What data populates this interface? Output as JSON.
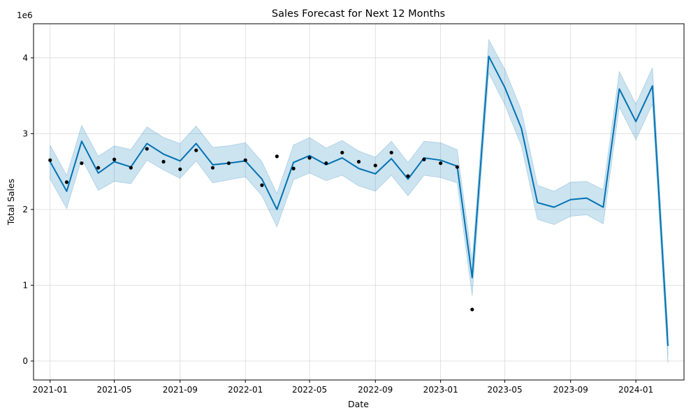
{
  "chart_data": {
    "type": "line",
    "title": "Sales Forecast for Next 12 Months",
    "xlabel": "Date",
    "ylabel": "Total Sales",
    "y_offset_label": "1e6",
    "y_scale_factor": 1000000,
    "xlim": [
      "2020-12-01",
      "2024-03-31"
    ],
    "ylim": [
      -250000,
      4450000
    ],
    "x_ticks": [
      "2021-01",
      "2021-05",
      "2021-09",
      "2022-01",
      "2022-05",
      "2022-09",
      "2023-01",
      "2023-05",
      "2023-09",
      "2024-01"
    ],
    "y_ticks": [
      0,
      1,
      2,
      3,
      4
    ],
    "grid": true,
    "colors": {
      "forecast_line": "#0072B2",
      "uncertainty_band": "#0072B2",
      "actual_points": "#000000",
      "grid": "#d9d9d9"
    },
    "series": [
      {
        "kind": "actual",
        "x": [
          "2021-01-01",
          "2021-02-01",
          "2021-03-01",
          "2021-04-01",
          "2021-05-01",
          "2021-06-01",
          "2021-07-01",
          "2021-08-01",
          "2021-09-01",
          "2021-10-01",
          "2021-11-01",
          "2021-12-01",
          "2022-01-01",
          "2022-02-01",
          "2022-03-01",
          "2022-04-01",
          "2022-05-01",
          "2022-06-01",
          "2022-07-01",
          "2022-08-01",
          "2022-09-01",
          "2022-10-01",
          "2022-11-01",
          "2022-12-01",
          "2023-01-01",
          "2023-02-01",
          "2023-03-01"
        ],
        "y": [
          2650000,
          2360000,
          2610000,
          2550000,
          2660000,
          2550000,
          2800000,
          2630000,
          2530000,
          2780000,
          2550000,
          2610000,
          2650000,
          2320000,
          2700000,
          2540000,
          2680000,
          2610000,
          2750000,
          2630000,
          2580000,
          2750000,
          2440000,
          2660000,
          2610000,
          2560000,
          680000
        ]
      },
      {
        "kind": "forecast",
        "x": [
          "2021-01-01",
          "2021-02-01",
          "2021-03-01",
          "2021-04-01",
          "2021-05-01",
          "2021-06-01",
          "2021-07-01",
          "2021-08-01",
          "2021-09-01",
          "2021-10-01",
          "2021-11-01",
          "2021-12-01",
          "2022-01-01",
          "2022-02-01",
          "2022-03-01",
          "2022-04-01",
          "2022-05-01",
          "2022-06-01",
          "2022-07-01",
          "2022-08-01",
          "2022-09-01",
          "2022-10-01",
          "2022-11-01",
          "2022-12-01",
          "2023-01-01",
          "2023-02-01",
          "2023-03-01",
          "2023-04-01",
          "2023-05-01",
          "2023-06-01",
          "2023-07-01",
          "2023-08-01",
          "2023-09-01",
          "2023-10-01",
          "2023-11-01",
          "2023-12-01",
          "2024-01-01",
          "2024-02-01",
          "2024-03-01"
        ],
        "y": [
          2630000,
          2240000,
          2900000,
          2480000,
          2630000,
          2560000,
          2870000,
          2730000,
          2640000,
          2870000,
          2590000,
          2610000,
          2640000,
          2400000,
          2000000,
          2620000,
          2710000,
          2590000,
          2680000,
          2540000,
          2470000,
          2670000,
          2400000,
          2680000,
          2650000,
          2570000,
          1100000,
          4020000,
          3610000,
          3070000,
          2090000,
          2030000,
          2130000,
          2150000,
          2030000,
          3590000,
          3160000,
          3630000,
          200000
        ],
        "y_upper": [
          2850000,
          2450000,
          3110000,
          2700000,
          2840000,
          2790000,
          3090000,
          2950000,
          2870000,
          3100000,
          2820000,
          2840000,
          2880000,
          2630000,
          2210000,
          2850000,
          2950000,
          2810000,
          2910000,
          2770000,
          2690000,
          2900000,
          2620000,
          2900000,
          2880000,
          2790000,
          1320000,
          4240000,
          3850000,
          3310000,
          2320000,
          2240000,
          2360000,
          2370000,
          2260000,
          3820000,
          3390000,
          3870000,
          420000
        ],
        "y_lower": [
          2400000,
          2010000,
          2670000,
          2250000,
          2370000,
          2340000,
          2650000,
          2520000,
          2410000,
          2640000,
          2350000,
          2390000,
          2430000,
          2180000,
          1770000,
          2390000,
          2480000,
          2380000,
          2450000,
          2310000,
          2240000,
          2450000,
          2180000,
          2450000,
          2420000,
          2350000,
          860000,
          3800000,
          3380000,
          2840000,
          1870000,
          1800000,
          1910000,
          1930000,
          1810000,
          3350000,
          2920000,
          3390000,
          -30000
        ]
      }
    ]
  }
}
